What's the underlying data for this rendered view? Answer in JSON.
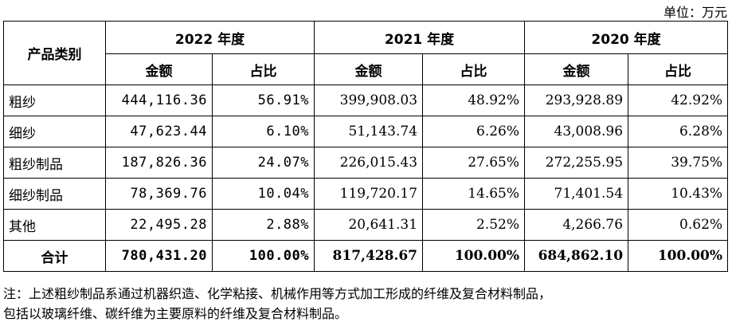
{
  "unit_label": "单位：万元",
  "headers": {
    "category": "产品类别",
    "years": [
      "2022 年度",
      "2021 年度",
      "2020 年度"
    ],
    "amount": "金额",
    "ratio": "占比"
  },
  "rows": [
    {
      "category": "粗纱",
      "y2022": {
        "amount": "444,116.36",
        "ratio": "56.91%"
      },
      "y2021": {
        "amount": "399,908.03",
        "ratio": "48.92%"
      },
      "y2020": {
        "amount": "293,928.89",
        "ratio": "42.92%"
      }
    },
    {
      "category": "细纱",
      "y2022": {
        "amount": "47,623.44",
        "ratio": "6.10%"
      },
      "y2021": {
        "amount": "51,143.74",
        "ratio": "6.26%"
      },
      "y2020": {
        "amount": "43,008.96",
        "ratio": "6.28%"
      }
    },
    {
      "category": "粗纱制品",
      "y2022": {
        "amount": "187,826.36",
        "ratio": "24.07%"
      },
      "y2021": {
        "amount": "226,015.43",
        "ratio": "27.65%"
      },
      "y2020": {
        "amount": "272,255.95",
        "ratio": "39.75%"
      }
    },
    {
      "category": "细纱制品",
      "y2022": {
        "amount": "78,369.76",
        "ratio": "10.04%"
      },
      "y2021": {
        "amount": "119,720.17",
        "ratio": "14.65%"
      },
      "y2020": {
        "amount": "71,401.54",
        "ratio": "10.43%"
      }
    },
    {
      "category": "其他",
      "y2022": {
        "amount": "22,495.28",
        "ratio": "2.88%"
      },
      "y2021": {
        "amount": "20,641.31",
        "ratio": "2.52%"
      },
      "y2020": {
        "amount": "4,266.76",
        "ratio": "0.62%"
      }
    },
    {
      "category": "合计",
      "y2022": {
        "amount": "780,431.20",
        "ratio": "100.00%"
      },
      "y2021": {
        "amount": "817,428.67",
        "ratio": "100.00%"
      },
      "y2020": {
        "amount": "684,862.10",
        "ratio": "100.00%"
      }
    }
  ],
  "note": {
    "line1": "注：上述粗纱制品系通过机器织造、化学粘接、机械作用等方式加工形成的纤维及复合材料制品，",
    "line2": "包括以玻璃纤维、碳纤维为主要原料的纤维及复合材料制品。"
  }
}
